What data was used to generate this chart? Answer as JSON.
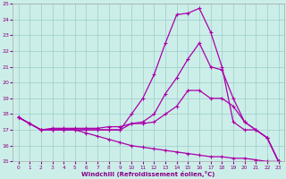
{
  "xlabel": "Windchill (Refroidissement éolien,°C)",
  "xlim": [
    0,
    23
  ],
  "ylim": [
    15,
    25
  ],
  "yticks": [
    15,
    16,
    17,
    18,
    19,
    20,
    21,
    22,
    23,
    24,
    25
  ],
  "xticks": [
    0,
    1,
    2,
    3,
    4,
    5,
    6,
    7,
    8,
    9,
    10,
    11,
    12,
    13,
    14,
    15,
    16,
    17,
    18,
    19,
    20,
    21,
    22,
    23
  ],
  "line_color": "#aa00aa",
  "bg_color": "#cceee8",
  "grid_color": "#99cccc",
  "line1_y": [
    17.8,
    17.4,
    17.0,
    17.0,
    17.0,
    17.0,
    17.0,
    17.0,
    17.0,
    17.0,
    18.0,
    19.0,
    20.5,
    22.5,
    24.3,
    24.4,
    24.7,
    23.2,
    21.0,
    17.5,
    17.0,
    17.0,
    16.5,
    15.0
  ],
  "line2_y": [
    17.8,
    17.4,
    17.0,
    17.1,
    17.1,
    17.1,
    17.1,
    17.1,
    17.2,
    17.2,
    17.4,
    17.5,
    18.0,
    19.3,
    20.3,
    21.5,
    22.5,
    21.0,
    20.8,
    19.0,
    17.5,
    17.0,
    16.5,
    15.0
  ],
  "line3_y": [
    17.8,
    17.4,
    17.0,
    17.0,
    17.0,
    17.0,
    17.0,
    17.0,
    17.0,
    17.0,
    17.4,
    17.4,
    17.5,
    18.0,
    18.5,
    19.5,
    19.5,
    19.0,
    19.0,
    18.5,
    17.5,
    17.0,
    16.5,
    15.0
  ],
  "line4_y": [
    17.8,
    17.4,
    17.0,
    17.0,
    17.0,
    17.0,
    16.8,
    16.6,
    16.4,
    16.2,
    16.0,
    15.9,
    15.8,
    15.7,
    15.6,
    15.5,
    15.4,
    15.3,
    15.3,
    15.2,
    15.2,
    15.1,
    15.0,
    15.0
  ]
}
